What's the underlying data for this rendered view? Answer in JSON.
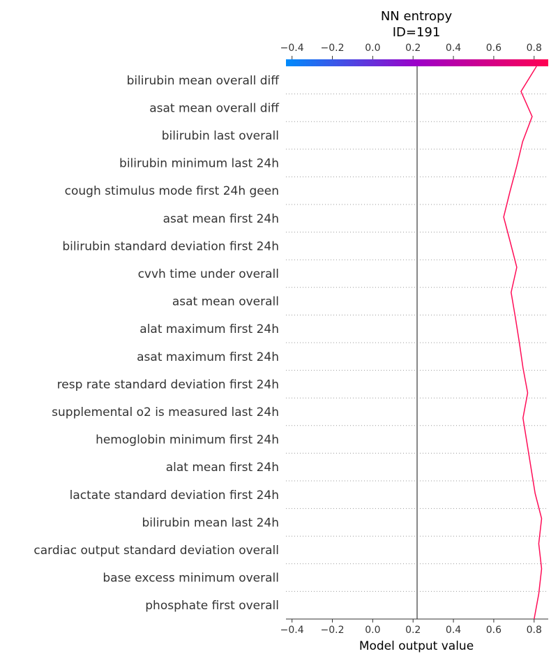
{
  "chart_data": {
    "type": "line",
    "title": "NN entropy",
    "subtitle": "ID=191",
    "xlabel": "Model output value",
    "ylabel": "",
    "xlim": [
      -0.43,
      0.87
    ],
    "x_ticks": [
      -0.4,
      -0.2,
      0.0,
      0.2,
      0.4,
      0.6,
      0.8
    ],
    "x_tick_labels": [
      "−0.4",
      "−0.2",
      "0.0",
      "0.2",
      "0.4",
      "0.6",
      "0.8"
    ],
    "base_value": 0.22,
    "features": [
      "bilirubin  mean  overall  diff",
      "asat  mean  overall  diff",
      "bilirubin  last  overall",
      "bilirubin  minimum  last 24h",
      "cough stimulus  mode  first 24h  geen",
      "asat  mean  first 24h",
      "bilirubin  standard deviation  first 24h",
      "cvvh  time under  overall",
      "asat  mean  overall",
      "alat  maximum  first 24h",
      "asat  maximum  first 24h",
      "resp rate  standard deviation  first 24h",
      "supplemental o2  is measured  last 24h",
      "hemoglobin  minimum  first 24h",
      "alat  mean  first 24h",
      "lactate  standard deviation  first 24h",
      "bilirubin  mean  last 24h",
      "cardiac output  standard deviation  overall",
      "base excess  minimum  overall",
      "phosphate  first  overall"
    ],
    "series": [
      {
        "values": [
          0.812,
          0.735,
          0.79,
          0.743,
          0.713,
          0.68,
          0.649,
          0.682,
          0.714,
          0.686,
          0.707,
          0.727,
          0.745,
          0.768,
          0.745,
          0.765,
          0.785,
          0.805,
          0.837,
          0.823,
          0.837,
          0.823,
          0.8
        ]
      }
    ],
    "colorbar": {
      "from": "#008bfb",
      "mid": "#9d00c8",
      "to": "#ff0052"
    },
    "colors": {
      "line": "#ff0d57",
      "base_line": "#888888",
      "axis": "#333333",
      "gridline": "#999999"
    }
  }
}
